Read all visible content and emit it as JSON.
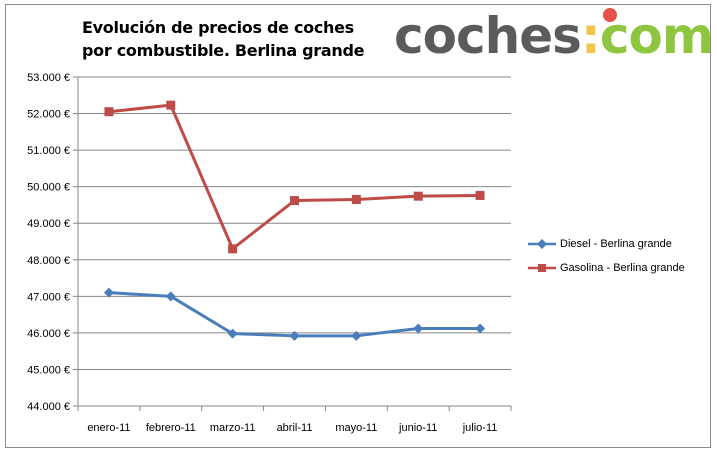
{
  "header": {
    "title_line1": "Evolución de precios de coches",
    "title_line2": "por combustible. Berlina grande"
  },
  "logo": {
    "main": "coches",
    "colon": ":",
    "tld": "com",
    "colors": {
      "text": "#5b5b5b",
      "dot_top": "#e8504a",
      "dot_bottom": "#f1c64a",
      "tld": "#8ec63f"
    }
  },
  "chart_data": {
    "type": "line",
    "title": "Evolución de precios de coches por combustible. Berlina grande",
    "xlabel": "",
    "ylabel": "",
    "categories": [
      "enero-11",
      "febrero-11",
      "marzo-11",
      "abril-11",
      "mayo-11",
      "junio-11",
      "julio-11"
    ],
    "y_ticks": [
      "44.000 €",
      "45.000 €",
      "46.000 €",
      "47.000 €",
      "48.000 €",
      "49.000 €",
      "50.000 €",
      "51.000 €",
      "52.000 €",
      "53.000 €"
    ],
    "ylim": [
      44000,
      53000
    ],
    "grid": true,
    "legend_position": "right",
    "series": [
      {
        "name": "Diesel - Berlina grande",
        "color": "#4a7ebb",
        "marker": "diamond",
        "values": [
          47100,
          47000,
          45980,
          45920,
          45920,
          46120,
          46120
        ]
      },
      {
        "name": "Gasolina - Berlina grande",
        "color": "#be4b48",
        "marker": "square",
        "values": [
          52050,
          52230,
          48300,
          49620,
          49650,
          49740,
          49760
        ]
      }
    ]
  }
}
